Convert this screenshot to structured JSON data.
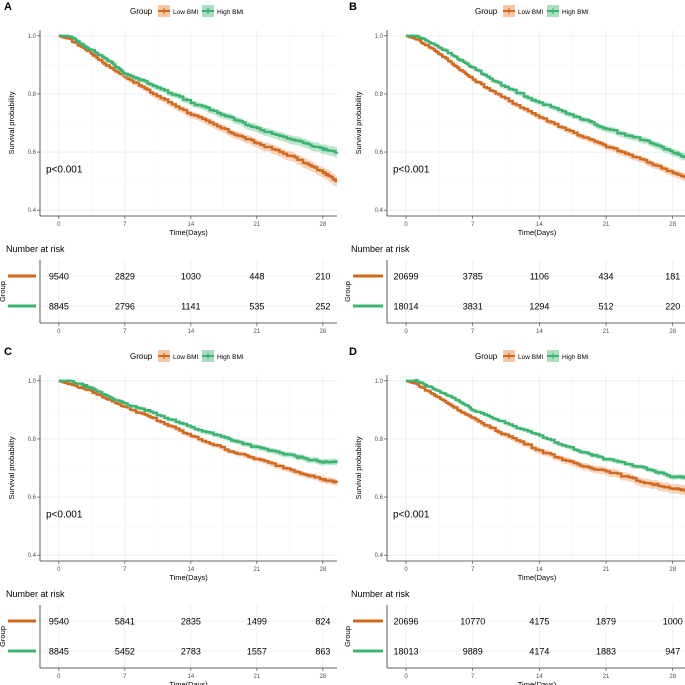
{
  "colors": {
    "low": "#D2691E",
    "high": "#3CB371",
    "low_band": "#F4C6A6",
    "high_band": "#A9DFBF",
    "grid": "#EBEBEB",
    "axis": "#333333"
  },
  "chart_data": [
    {
      "type": "line",
      "panel": "A",
      "legend_title": "Group",
      "legend_entries": [
        "Low BMI",
        "High BMI"
      ],
      "xlabel": "Time(Days)",
      "ylabel": "Survival probability",
      "xlim": [
        -2,
        29.5
      ],
      "ylim": [
        0.38,
        1.02
      ],
      "xticks": [
        0,
        7,
        14,
        21,
        28
      ],
      "yticks": [
        0.4,
        0.6,
        0.8,
        1.0
      ],
      "ytick_labels": [
        "0.4",
        "0.6",
        "0.8",
        "1.0"
      ],
      "pvalue": "p<0.001",
      "x": [
        0,
        1,
        3,
        5,
        7,
        10,
        14,
        18,
        21,
        25,
        28,
        29.5
      ],
      "series": [
        {
          "name": "Low BMI",
          "values": [
            1.0,
            0.99,
            0.95,
            0.9,
            0.86,
            0.8,
            0.73,
            0.67,
            0.63,
            0.58,
            0.53,
            0.5
          ],
          "band": 0.018
        },
        {
          "name": "High BMI",
          "values": [
            1.0,
            1.0,
            0.96,
            0.92,
            0.87,
            0.83,
            0.77,
            0.72,
            0.68,
            0.64,
            0.61,
            0.6
          ],
          "band": 0.016
        }
      ],
      "risk_table": {
        "title": "Number at risk",
        "ylabel": "Group",
        "xlabel": "Time(Days)",
        "rows": [
          {
            "name": "Low BMI",
            "values": [
              "9540",
              "2829",
              "1030",
              "448",
              "210"
            ]
          },
          {
            "name": "High BMI",
            "values": [
              "8845",
              "2796",
              "1141",
              "535",
              "252"
            ]
          }
        ],
        "show_xlabel": false
      }
    },
    {
      "type": "line",
      "panel": "B",
      "legend_title": "Group",
      "legend_entries": [
        "Low BMI",
        "High BMI"
      ],
      "xlabel": "Time(Days)",
      "ylabel": "Survival probability",
      "xlim": [
        -2,
        29.5
      ],
      "ylim": [
        0.38,
        1.02
      ],
      "xticks": [
        0,
        7,
        14,
        21,
        28
      ],
      "yticks": [
        0.4,
        0.6,
        0.8,
        1.0
      ],
      "ytick_labels": [
        "0.4",
        "0.6",
        "0.8",
        "1.0"
      ],
      "pvalue": "p<0.001",
      "x": [
        0,
        1,
        3,
        5,
        7,
        10,
        14,
        18,
        21,
        25,
        28,
        29.5
      ],
      "series": [
        {
          "name": "Low BMI",
          "values": [
            1.0,
            0.99,
            0.95,
            0.9,
            0.85,
            0.79,
            0.72,
            0.66,
            0.62,
            0.57,
            0.53,
            0.51
          ],
          "band": 0.012
        },
        {
          "name": "High BMI",
          "values": [
            1.0,
            1.0,
            0.97,
            0.93,
            0.89,
            0.83,
            0.77,
            0.72,
            0.68,
            0.64,
            0.6,
            0.58
          ],
          "band": 0.012
        }
      ],
      "risk_table": {
        "title": "Number at risk",
        "ylabel": "Group",
        "xlabel": "Time(Days)",
        "rows": [
          {
            "name": "Low BMI",
            "values": [
              "20699",
              "3785",
              "1106",
              "434",
              "181"
            ]
          },
          {
            "name": "High BMI",
            "values": [
              "18014",
              "3831",
              "1294",
              "512",
              "220"
            ]
          }
        ],
        "show_xlabel": false
      }
    },
    {
      "type": "line",
      "panel": "C",
      "legend_title": "Group",
      "legend_entries": [
        "Low BMI",
        "High BMI"
      ],
      "xlabel": "Time(Days)",
      "ylabel": "Survival probability",
      "xlim": [
        -2,
        29.5
      ],
      "ylim": [
        0.38,
        1.02
      ],
      "xticks": [
        0,
        7,
        14,
        21,
        28
      ],
      "yticks": [
        0.4,
        0.6,
        0.8,
        1.0
      ],
      "ytick_labels": [
        "0.4",
        "0.6",
        "0.8",
        "1.0"
      ],
      "pvalue": "p<0.001",
      "x": [
        0,
        1,
        3,
        5,
        7,
        10,
        14,
        18,
        21,
        25,
        28,
        29.5
      ],
      "series": [
        {
          "name": "Low BMI",
          "values": [
            1.0,
            0.99,
            0.97,
            0.94,
            0.91,
            0.87,
            0.81,
            0.76,
            0.73,
            0.69,
            0.66,
            0.65
          ],
          "band": 0.01
        },
        {
          "name": "High BMI",
          "values": [
            1.0,
            1.0,
            0.98,
            0.95,
            0.92,
            0.89,
            0.84,
            0.8,
            0.77,
            0.74,
            0.72,
            0.72
          ],
          "band": 0.01
        }
      ],
      "risk_table": {
        "title": "Number at risk",
        "ylabel": "Group",
        "xlabel": "Time(Days)",
        "rows": [
          {
            "name": "Low BMI",
            "values": [
              "9540",
              "5841",
              "2835",
              "1499",
              "824"
            ]
          },
          {
            "name": "High BMI",
            "values": [
              "8845",
              "5452",
              "2783",
              "1557",
              "863"
            ]
          }
        ],
        "show_xlabel": true
      }
    },
    {
      "type": "line",
      "panel": "D",
      "legend_title": "Group",
      "legend_entries": [
        "Low BMI",
        "High BMI"
      ],
      "xlabel": "Time(Days)",
      "ylabel": "Survival probability",
      "xlim": [
        -2,
        29.5
      ],
      "ylim": [
        0.38,
        1.02
      ],
      "xticks": [
        0,
        7,
        14,
        21,
        28
      ],
      "yticks": [
        0.4,
        0.6,
        0.8,
        1.0
      ],
      "ytick_labels": [
        "0.4",
        "0.6",
        "0.8",
        "1.0"
      ],
      "pvalue": "p<0.001",
      "x": [
        0,
        1,
        3,
        5,
        7,
        10,
        14,
        18,
        21,
        25,
        28,
        29.5
      ],
      "series": [
        {
          "name": "Low BMI",
          "values": [
            1.0,
            0.99,
            0.95,
            0.91,
            0.87,
            0.82,
            0.76,
            0.71,
            0.69,
            0.65,
            0.63,
            0.62
          ],
          "band": 0.016
        },
        {
          "name": "High BMI",
          "values": [
            1.0,
            1.0,
            0.97,
            0.94,
            0.9,
            0.86,
            0.81,
            0.76,
            0.73,
            0.7,
            0.67,
            0.67
          ],
          "band": 0.008
        }
      ],
      "risk_table": {
        "title": "Number at risk",
        "ylabel": "Group",
        "xlabel": "Time(Days)",
        "rows": [
          {
            "name": "Low BMI",
            "values": [
              "20696",
              "10770",
              "4175",
              "1879",
              "1000"
            ]
          },
          {
            "name": "High BMI",
            "values": [
              "18013",
              "9889",
              "4174",
              "1883",
              "947"
            ]
          }
        ],
        "show_xlabel": true
      }
    }
  ]
}
